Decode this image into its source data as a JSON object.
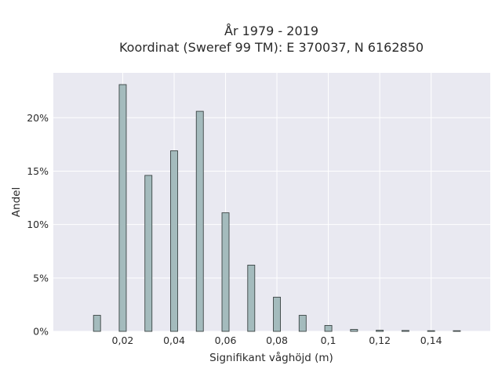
{
  "chart_data": {
    "type": "bar",
    "title_lines": [
      "År 1979 - 2019",
      "Koordinat (Sweref 99 TM): E 370037, N 6162850"
    ],
    "xlabel": "Signifikant våghöjd (m)",
    "ylabel": "Andel",
    "x": [
      0.01,
      0.02,
      0.03,
      0.04,
      0.05,
      0.06,
      0.07,
      0.08,
      0.09,
      0.1,
      0.11,
      0.12,
      0.13,
      0.14,
      0.15
    ],
    "values": [
      1.5,
      23.1,
      14.6,
      16.9,
      20.6,
      11.1,
      6.2,
      3.2,
      1.5,
      0.55,
      0.18,
      0.1,
      0.08,
      0.04,
      0.03
    ],
    "xlim": [
      -0.007,
      0.163
    ],
    "ylim": [
      0,
      24.2
    ],
    "xticks": [
      {
        "value": 0.02,
        "label": "0,02"
      },
      {
        "value": 0.04,
        "label": "0,04"
      },
      {
        "value": 0.06,
        "label": "0,06"
      },
      {
        "value": 0.08,
        "label": "0,08"
      },
      {
        "value": 0.1,
        "label": "0,1"
      },
      {
        "value": 0.12,
        "label": "0,12"
      },
      {
        "value": 0.14,
        "label": "0,14"
      }
    ],
    "yticks": [
      {
        "value": 0,
        "label": "0%"
      },
      {
        "value": 5,
        "label": "5%"
      },
      {
        "value": 10,
        "label": "10%"
      },
      {
        "value": 15,
        "label": "15%"
      },
      {
        "value": 20,
        "label": "20%"
      }
    ],
    "grid": true,
    "colors": {
      "plot_background": "#e9e9f1",
      "grid": "#ffffff",
      "bar_fill": "#a4bbbd",
      "bar_edge": "#3b4444"
    }
  }
}
